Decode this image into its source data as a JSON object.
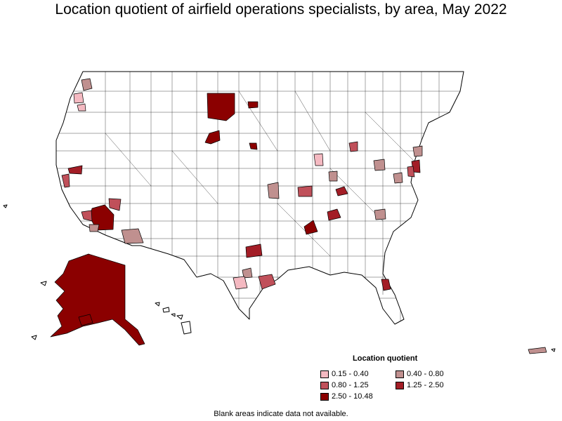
{
  "title": "Location quotient of airfield operations specialists, by area, May 2022",
  "legend": {
    "title": "Location quotient",
    "items": [
      {
        "label": "0.15 - 0.40",
        "color": "#f4b9c1"
      },
      {
        "label": "0.40 - 0.80",
        "color": "#c0908f"
      },
      {
        "label": "0.80 - 1.25",
        "color": "#c0505a"
      },
      {
        "label": "1.25 - 2.50",
        "color": "#a31d26"
      },
      {
        "label": "2.50 - 10.48",
        "color": "#8b0000"
      }
    ]
  },
  "footnote": "Blank areas indicate data not available.",
  "colors": {
    "background": "#ffffff",
    "border": "#000000",
    "no_data": "#ffffff"
  }
}
